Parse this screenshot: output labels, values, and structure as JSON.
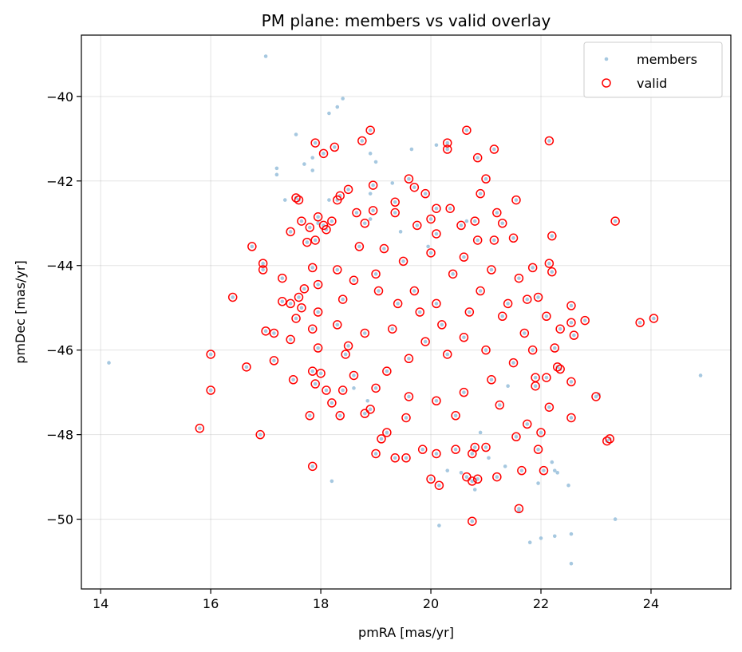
{
  "chart_data": {
    "type": "scatter",
    "title": "PM plane: members vs valid overlay",
    "xlabel": "pmRA [mas/yr]",
    "ylabel": "pmDec [mas/yr]",
    "xlim": [
      13.65,
      25.45
    ],
    "ylim": [
      -51.65,
      -38.55
    ],
    "xticks": [
      14,
      16,
      18,
      20,
      22,
      24
    ],
    "xtick_labels": [
      "14",
      "16",
      "18",
      "20",
      "22",
      "24"
    ],
    "yticks": [
      -50,
      -48,
      -46,
      -44,
      -42,
      -40
    ],
    "ytick_labels": [
      "−50",
      "−48",
      "−46",
      "−44",
      "−42",
      "−40"
    ],
    "grid": true,
    "legend_placement": "upper-right",
    "series": [
      {
        "name": "members",
        "marker": "dot",
        "color": "#a6c8e0",
        "points": [
          [
            17.0,
            -39.05
          ],
          [
            18.4,
            -40.05
          ],
          [
            18.3,
            -40.25
          ],
          [
            18.15,
            -40.4
          ],
          [
            17.55,
            -40.9
          ],
          [
            17.85,
            -41.45
          ],
          [
            18.9,
            -41.35
          ],
          [
            17.7,
            -41.6
          ],
          [
            17.2,
            -41.7
          ],
          [
            17.85,
            -41.75
          ],
          [
            17.2,
            -41.85
          ],
          [
            19.0,
            -41.55
          ],
          [
            19.65,
            -41.25
          ],
          [
            20.1,
            -41.15
          ],
          [
            19.3,
            -42.05
          ],
          [
            17.35,
            -42.45
          ],
          [
            18.15,
            -42.45
          ],
          [
            18.9,
            -42.3
          ],
          [
            18.9,
            -42.9
          ],
          [
            17.95,
            -43.0
          ],
          [
            19.45,
            -43.2
          ],
          [
            20.65,
            -42.95
          ],
          [
            14.15,
            -46.3
          ],
          [
            24.9,
            -46.6
          ],
          [
            23.05,
            -47.05
          ],
          [
            16.0,
            -46.95
          ],
          [
            21.05,
            -48.55
          ],
          [
            21.35,
            -48.75
          ],
          [
            22.2,
            -48.65
          ],
          [
            22.25,
            -48.85
          ],
          [
            22.3,
            -48.9
          ],
          [
            22.5,
            -49.2
          ],
          [
            21.95,
            -49.15
          ],
          [
            18.2,
            -49.1
          ],
          [
            20.3,
            -48.85
          ],
          [
            20.55,
            -48.9
          ],
          [
            20.8,
            -49.3
          ],
          [
            21.6,
            -49.8
          ],
          [
            22.0,
            -50.45
          ],
          [
            21.8,
            -50.55
          ],
          [
            22.25,
            -50.4
          ],
          [
            22.55,
            -50.35
          ],
          [
            23.35,
            -50.0
          ],
          [
            22.55,
            -51.05
          ],
          [
            20.15,
            -50.15
          ],
          [
            18.6,
            -46.9
          ],
          [
            18.85,
            -47.2
          ],
          [
            21.4,
            -46.85
          ],
          [
            19.95,
            -43.55
          ],
          [
            20.9,
            -47.95
          ]
        ]
      },
      {
        "name": "valid",
        "marker": "open-circle",
        "color": "#ff0000",
        "points": [
          [
            18.9,
            -40.8
          ],
          [
            20.65,
            -40.8
          ],
          [
            17.9,
            -41.1
          ],
          [
            18.25,
            -41.2
          ],
          [
            18.75,
            -41.05
          ],
          [
            20.3,
            -41.1
          ],
          [
            20.3,
            -41.25
          ],
          [
            21.15,
            -41.25
          ],
          [
            22.15,
            -41.05
          ],
          [
            18.05,
            -41.35
          ],
          [
            20.85,
            -41.45
          ],
          [
            21.0,
            -41.95
          ],
          [
            19.6,
            -41.95
          ],
          [
            19.7,
            -42.15
          ],
          [
            18.5,
            -42.2
          ],
          [
            18.95,
            -42.1
          ],
          [
            18.35,
            -42.35
          ],
          [
            17.55,
            -42.4
          ],
          [
            19.9,
            -42.3
          ],
          [
            20.9,
            -42.3
          ],
          [
            18.3,
            -42.45
          ],
          [
            17.6,
            -42.45
          ],
          [
            19.35,
            -42.5
          ],
          [
            21.55,
            -42.45
          ],
          [
            20.1,
            -42.65
          ],
          [
            20.35,
            -42.65
          ],
          [
            18.95,
            -42.7
          ],
          [
            19.35,
            -42.75
          ],
          [
            18.65,
            -42.75
          ],
          [
            21.2,
            -42.75
          ],
          [
            17.95,
            -42.85
          ],
          [
            20.0,
            -42.9
          ],
          [
            18.2,
            -42.95
          ],
          [
            18.8,
            -43.0
          ],
          [
            17.65,
            -42.95
          ],
          [
            19.75,
            -43.05
          ],
          [
            17.8,
            -43.1
          ],
          [
            18.05,
            -43.05
          ],
          [
            20.55,
            -43.05
          ],
          [
            20.8,
            -42.95
          ],
          [
            21.3,
            -43.0
          ],
          [
            17.45,
            -43.2
          ],
          [
            18.1,
            -43.15
          ],
          [
            20.1,
            -43.25
          ],
          [
            16.75,
            -43.55
          ],
          [
            18.7,
            -43.55
          ],
          [
            17.75,
            -43.45
          ],
          [
            17.9,
            -43.4
          ],
          [
            21.15,
            -43.4
          ],
          [
            21.5,
            -43.35
          ],
          [
            22.2,
            -43.3
          ],
          [
            23.35,
            -42.95
          ],
          [
            16.95,
            -43.95
          ],
          [
            16.95,
            -44.1
          ],
          [
            17.3,
            -44.3
          ],
          [
            17.85,
            -44.05
          ],
          [
            18.3,
            -44.1
          ],
          [
            21.85,
            -44.05
          ],
          [
            22.15,
            -43.95
          ],
          [
            22.2,
            -44.15
          ],
          [
            16.4,
            -44.75
          ],
          [
            17.3,
            -44.85
          ],
          [
            17.45,
            -44.9
          ],
          [
            17.6,
            -44.75
          ],
          [
            17.7,
            -44.55
          ],
          [
            17.95,
            -44.45
          ],
          [
            22.55,
            -44.95
          ],
          [
            22.55,
            -45.35
          ],
          [
            21.95,
            -44.75
          ],
          [
            21.75,
            -44.8
          ],
          [
            17.65,
            -45.0
          ],
          [
            17.95,
            -45.1
          ],
          [
            17.55,
            -45.25
          ],
          [
            17.85,
            -45.5
          ],
          [
            17.0,
            -45.55
          ],
          [
            17.15,
            -45.6
          ],
          [
            22.1,
            -45.2
          ],
          [
            22.35,
            -45.5
          ],
          [
            22.8,
            -45.3
          ],
          [
            23.8,
            -45.35
          ],
          [
            24.05,
            -45.25
          ],
          [
            22.25,
            -45.95
          ],
          [
            22.6,
            -45.65
          ],
          [
            17.45,
            -45.75
          ],
          [
            17.95,
            -45.95
          ],
          [
            16.0,
            -46.1
          ],
          [
            16.65,
            -46.4
          ],
          [
            17.15,
            -46.25
          ],
          [
            17.85,
            -46.5
          ],
          [
            18.0,
            -46.55
          ],
          [
            22.3,
            -46.4
          ],
          [
            22.35,
            -46.45
          ],
          [
            22.1,
            -46.65
          ],
          [
            21.9,
            -46.65
          ],
          [
            22.55,
            -46.75
          ],
          [
            16.0,
            -46.95
          ],
          [
            17.5,
            -46.7
          ],
          [
            17.9,
            -46.8
          ],
          [
            18.1,
            -46.95
          ],
          [
            18.4,
            -46.95
          ],
          [
            21.9,
            -46.85
          ],
          [
            18.2,
            -47.25
          ],
          [
            18.35,
            -47.55
          ],
          [
            17.8,
            -47.55
          ],
          [
            22.15,
            -47.35
          ],
          [
            22.55,
            -47.6
          ],
          [
            23.0,
            -47.1
          ],
          [
            15.8,
            -47.85
          ],
          [
            16.9,
            -48.0
          ],
          [
            21.75,
            -47.75
          ],
          [
            22.0,
            -47.95
          ],
          [
            18.8,
            -47.5
          ],
          [
            19.2,
            -47.95
          ],
          [
            19.1,
            -48.1
          ],
          [
            23.2,
            -48.15
          ],
          [
            23.25,
            -48.1
          ],
          [
            21.55,
            -48.05
          ],
          [
            20.8,
            -48.3
          ],
          [
            20.75,
            -48.45
          ],
          [
            20.1,
            -48.45
          ],
          [
            20.45,
            -48.35
          ],
          [
            21.0,
            -48.3
          ],
          [
            19.85,
            -48.35
          ],
          [
            21.95,
            -48.35
          ],
          [
            19.0,
            -48.45
          ],
          [
            19.35,
            -48.55
          ],
          [
            19.55,
            -48.55
          ],
          [
            17.85,
            -48.75
          ],
          [
            21.65,
            -48.85
          ],
          [
            22.05,
            -48.85
          ],
          [
            20.65,
            -49.0
          ],
          [
            20.75,
            -49.1
          ],
          [
            20.85,
            -49.05
          ],
          [
            20.0,
            -49.05
          ],
          [
            21.2,
            -49.0
          ],
          [
            20.15,
            -49.2
          ],
          [
            21.6,
            -49.75
          ],
          [
            20.75,
            -50.05
          ],
          [
            18.6,
            -44.35
          ],
          [
            19.05,
            -44.6
          ],
          [
            19.4,
            -44.9
          ],
          [
            19.8,
            -45.1
          ],
          [
            20.2,
            -45.4
          ],
          [
            20.6,
            -45.7
          ],
          [
            21.0,
            -46.0
          ],
          [
            21.3,
            -45.2
          ],
          [
            19.6,
            -46.2
          ],
          [
            19.2,
            -46.5
          ],
          [
            18.8,
            -45.6
          ],
          [
            18.5,
            -45.9
          ],
          [
            20.4,
            -44.2
          ],
          [
            20.9,
            -44.6
          ],
          [
            21.4,
            -44.9
          ],
          [
            21.7,
            -45.6
          ],
          [
            21.5,
            -46.3
          ],
          [
            21.1,
            -46.7
          ],
          [
            20.6,
            -47.0
          ],
          [
            20.1,
            -47.2
          ],
          [
            19.6,
            -47.1
          ],
          [
            19.0,
            -46.9
          ],
          [
            18.6,
            -46.6
          ],
          [
            18.3,
            -45.4
          ],
          [
            18.4,
            -44.8
          ],
          [
            19.0,
            -44.2
          ],
          [
            19.5,
            -43.9
          ],
          [
            20.0,
            -43.7
          ],
          [
            20.6,
            -43.8
          ],
          [
            21.1,
            -44.1
          ],
          [
            19.9,
            -45.8
          ],
          [
            20.3,
            -46.1
          ],
          [
            19.3,
            -45.5
          ],
          [
            20.7,
            -45.1
          ],
          [
            19.7,
            -44.6
          ],
          [
            20.1,
            -44.9
          ],
          [
            19.15,
            -43.6
          ],
          [
            20.85,
            -43.4
          ],
          [
            21.6,
            -44.3
          ],
          [
            18.9,
            -47.4
          ],
          [
            20.45,
            -47.55
          ],
          [
            21.25,
            -47.3
          ],
          [
            19.55,
            -47.6
          ],
          [
            18.45,
            -46.1
          ],
          [
            21.85,
            -46.0
          ]
        ]
      }
    ]
  }
}
